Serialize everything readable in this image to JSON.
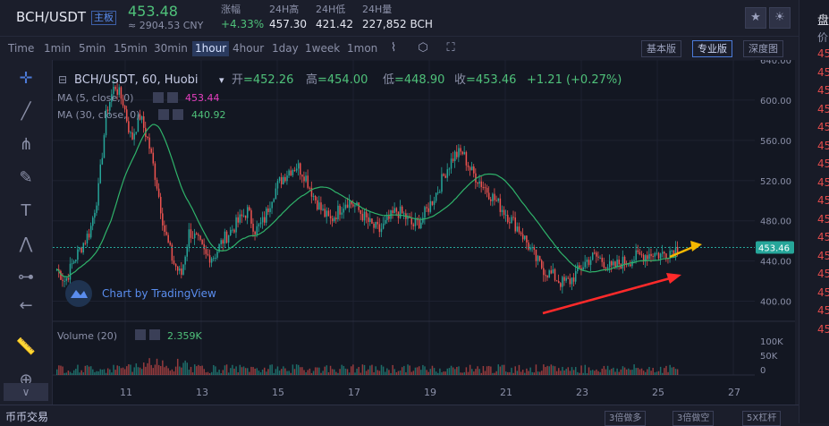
{
  "header": {
    "pair": "BCH/USDT",
    "badge": "主板",
    "last_price": "453.48",
    "cny": "≈ 2904.53 CNY",
    "stats": [
      {
        "label": "涨幅",
        "value": "+4.33%"
      },
      {
        "label": "24H高",
        "value": "457.30"
      },
      {
        "label": "24H低",
        "value": "421.42"
      },
      {
        "label": "24H量",
        "value": "227,852 BCH"
      }
    ]
  },
  "toolbar": {
    "timeframes": [
      "Time",
      "1min",
      "5min",
      "15min",
      "30min",
      "1hour",
      "4hour",
      "1day",
      "1week",
      "1mon"
    ],
    "active_timeframe": "1hour",
    "versions": [
      "基本版",
      "专业版",
      "深度图"
    ],
    "active_version": "专业版"
  },
  "legend": {
    "symbol": "BCH/USDT, 60, Huobi",
    "open_label": "开",
    "open": "=452.26",
    "high_label": "高",
    "high": "=454.00",
    "low_label": "低",
    "low": "=448.90",
    "close_label": "收",
    "close": "=453.46",
    "change": "+1.21 (+0.27%)",
    "ma5_label": "MA (5, close, 0)",
    "ma5_value": "453.44",
    "ma30_label": "MA (30, close, 0)",
    "ma30_value": "440.92",
    "volume_label": "Volume (20)",
    "volume_value": "2.359K",
    "watermark": "Chart by TradingView"
  },
  "chart_data": {
    "type": "candlestick",
    "x_ticks": [
      "11",
      "13",
      "15",
      "17",
      "19",
      "21",
      "23",
      "25",
      "27"
    ],
    "y_ticks": [
      "640.00",
      "600.00",
      "560.00",
      "520.00",
      "480.00",
      "440.00",
      "400.00"
    ],
    "y_range": [
      380,
      640
    ],
    "last_price_label": "453.46",
    "volume_ticks": [
      "100K",
      "50K",
      "0"
    ],
    "colors": {
      "up": "#26a69a",
      "down": "#ef5350",
      "ma5": "#e83fc0",
      "ma30": "#2fb36a",
      "arrow_red": "#ff2a2a",
      "arrow_yellow": "#f5b800"
    },
    "close_path": [
      432,
      420,
      440,
      455,
      470,
      510,
      590,
      615,
      598,
      560,
      585,
      560,
      520,
      470,
      440,
      425,
      470,
      460,
      445,
      445,
      460,
      470,
      480,
      490,
      470,
      480,
      505,
      520,
      530,
      535,
      525,
      505,
      490,
      480,
      490,
      500,
      495,
      485,
      475,
      470,
      480,
      490,
      485,
      475,
      480,
      495,
      510,
      530,
      545,
      548,
      530,
      520,
      510,
      500,
      490,
      480,
      470,
      455,
      440,
      430,
      425,
      418,
      420,
      430,
      440,
      445,
      440,
      432,
      438,
      440,
      444,
      446,
      448,
      446,
      450,
      453
    ]
  },
  "right_panel": {
    "chars": [
      "盘",
      "价",
      "45",
      "45",
      "45",
      "45",
      "45",
      "45",
      "45",
      "45",
      "45",
      "45",
      "45",
      "45",
      "45",
      "45",
      "45",
      "45"
    ]
  },
  "bottom": {
    "tab": "币币交易",
    "buttons": [
      "3倍做多",
      "3倍做空",
      "5X杠杆"
    ]
  }
}
